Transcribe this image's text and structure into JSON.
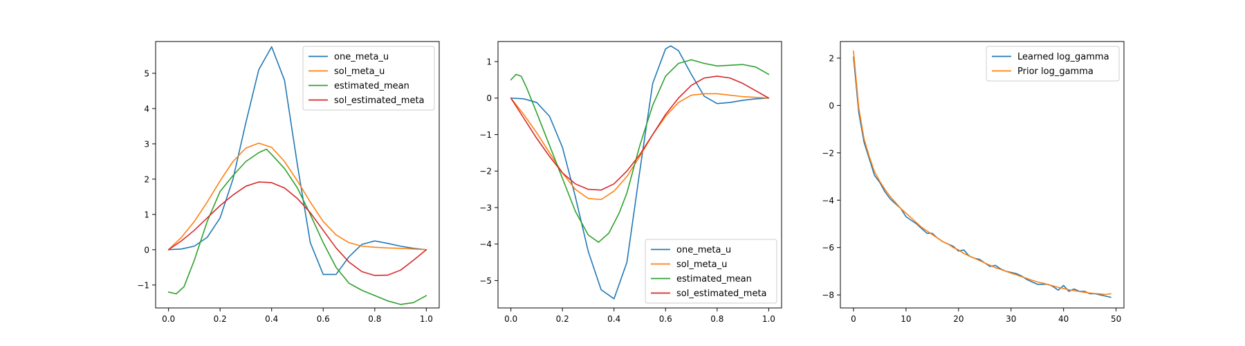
{
  "colors": {
    "C0": "#1f77b4",
    "C1": "#ff7f0e",
    "C2": "#2ca02c",
    "C3": "#d62728"
  },
  "chart_data": [
    {
      "type": "line",
      "xlim": [
        -0.05,
        1.05
      ],
      "ylim": [
        -1.65,
        5.9
      ],
      "xticks": [
        0.0,
        0.2,
        0.4,
        0.6,
        0.8,
        1.0
      ],
      "xtick_labels": [
        "0.0",
        "0.2",
        "0.4",
        "0.6",
        "0.8",
        "1.0"
      ],
      "yticks": [
        -1,
        0,
        1,
        2,
        3,
        4,
        5
      ],
      "ytick_labels": [
        "−1",
        "0",
        "1",
        "2",
        "3",
        "4",
        "5"
      ],
      "grid": false,
      "legend": "upper right",
      "series": [
        {
          "name": "one_meta_u",
          "color": "#1f77b4",
          "x": [
            0.0,
            0.05,
            0.1,
            0.15,
            0.2,
            0.25,
            0.3,
            0.35,
            0.4,
            0.45,
            0.5,
            0.55,
            0.6,
            0.65,
            0.7,
            0.75,
            0.8,
            0.85,
            0.9,
            0.95,
            1.0
          ],
          "y": [
            0.0,
            0.02,
            0.1,
            0.35,
            0.9,
            2.0,
            3.6,
            5.1,
            5.75,
            4.8,
            2.4,
            0.2,
            -0.7,
            -0.7,
            -0.2,
            0.15,
            0.25,
            0.18,
            0.1,
            0.04,
            0.0
          ]
        },
        {
          "name": "sol_meta_u",
          "color": "#ff7f0e",
          "x": [
            0.0,
            0.05,
            0.1,
            0.15,
            0.2,
            0.25,
            0.3,
            0.35,
            0.4,
            0.45,
            0.5,
            0.55,
            0.6,
            0.65,
            0.7,
            0.75,
            0.8,
            0.85,
            0.9,
            0.95,
            1.0
          ],
          "y": [
            0.0,
            0.35,
            0.8,
            1.35,
            1.95,
            2.5,
            2.88,
            3.02,
            2.9,
            2.5,
            1.95,
            1.35,
            0.8,
            0.42,
            0.2,
            0.1,
            0.07,
            0.05,
            0.04,
            0.02,
            0.0
          ]
        },
        {
          "name": "estimated_mean",
          "color": "#2ca02c",
          "x": [
            0.0,
            0.03,
            0.06,
            0.1,
            0.15,
            0.2,
            0.25,
            0.3,
            0.35,
            0.38,
            0.4,
            0.45,
            0.5,
            0.55,
            0.6,
            0.65,
            0.7,
            0.75,
            0.8,
            0.85,
            0.9,
            0.95,
            1.0
          ],
          "y": [
            -1.2,
            -1.25,
            -1.05,
            -0.3,
            0.8,
            1.65,
            2.1,
            2.5,
            2.75,
            2.85,
            2.7,
            2.3,
            1.75,
            1.0,
            0.2,
            -0.5,
            -0.95,
            -1.15,
            -1.3,
            -1.45,
            -1.55,
            -1.5,
            -1.3
          ]
        },
        {
          "name": "sol_estimated_meta",
          "color": "#d62728",
          "x": [
            0.0,
            0.05,
            0.1,
            0.15,
            0.2,
            0.25,
            0.3,
            0.35,
            0.4,
            0.45,
            0.5,
            0.55,
            0.6,
            0.65,
            0.7,
            0.75,
            0.8,
            0.85,
            0.9,
            0.95,
            1.0
          ],
          "y": [
            0.0,
            0.25,
            0.55,
            0.9,
            1.25,
            1.55,
            1.8,
            1.92,
            1.9,
            1.75,
            1.45,
            1.05,
            0.55,
            0.05,
            -0.35,
            -0.62,
            -0.73,
            -0.72,
            -0.58,
            -0.3,
            0.0
          ]
        }
      ]
    },
    {
      "type": "line",
      "xlim": [
        -0.05,
        1.05
      ],
      "ylim": [
        -5.75,
        1.55
      ],
      "xticks": [
        0.0,
        0.2,
        0.4,
        0.6,
        0.8,
        1.0
      ],
      "xtick_labels": [
        "0.0",
        "0.2",
        "0.4",
        "0.6",
        "0.8",
        "1.0"
      ],
      "yticks": [
        -5,
        -4,
        -3,
        -2,
        -1,
        0,
        1
      ],
      "ytick_labels": [
        "−5",
        "−4",
        "−3",
        "−2",
        "−1",
        "0",
        "1"
      ],
      "grid": false,
      "legend": "lower right",
      "series": [
        {
          "name": "one_meta_u",
          "color": "#1f77b4",
          "x": [
            0.0,
            0.05,
            0.1,
            0.15,
            0.2,
            0.25,
            0.3,
            0.35,
            0.4,
            0.45,
            0.5,
            0.55,
            0.6,
            0.62,
            0.65,
            0.7,
            0.75,
            0.8,
            0.85,
            0.9,
            0.95,
            1.0
          ],
          "y": [
            0.0,
            -0.02,
            -0.12,
            -0.5,
            -1.35,
            -2.7,
            -4.2,
            -5.25,
            -5.5,
            -4.5,
            -2.0,
            0.4,
            1.35,
            1.43,
            1.3,
            0.65,
            0.05,
            -0.15,
            -0.12,
            -0.06,
            -0.02,
            0.0
          ]
        },
        {
          "name": "sol_meta_u",
          "color": "#ff7f0e",
          "x": [
            0.0,
            0.05,
            0.1,
            0.15,
            0.2,
            0.25,
            0.3,
            0.35,
            0.4,
            0.45,
            0.5,
            0.55,
            0.6,
            0.65,
            0.7,
            0.75,
            0.8,
            0.85,
            0.9,
            0.95,
            1.0
          ],
          "y": [
            0.0,
            -0.45,
            -0.95,
            -1.5,
            -2.05,
            -2.5,
            -2.75,
            -2.78,
            -2.55,
            -2.15,
            -1.6,
            -1.0,
            -0.5,
            -0.12,
            0.08,
            0.12,
            0.12,
            0.08,
            0.04,
            0.02,
            0.0
          ]
        },
        {
          "name": "estimated_mean",
          "color": "#2ca02c",
          "x": [
            0.0,
            0.02,
            0.04,
            0.06,
            0.1,
            0.15,
            0.2,
            0.25,
            0.3,
            0.34,
            0.38,
            0.42,
            0.45,
            0.5,
            0.55,
            0.6,
            0.65,
            0.7,
            0.75,
            0.8,
            0.85,
            0.9,
            0.95,
            1.0
          ],
          "y": [
            0.5,
            0.65,
            0.6,
            0.3,
            -0.4,
            -1.3,
            -2.2,
            -3.1,
            -3.75,
            -3.95,
            -3.7,
            -3.15,
            -2.6,
            -1.3,
            -0.2,
            0.6,
            0.95,
            1.05,
            0.95,
            0.88,
            0.9,
            0.92,
            0.85,
            0.65
          ]
        },
        {
          "name": "sol_estimated_meta",
          "color": "#d62728",
          "x": [
            0.0,
            0.05,
            0.1,
            0.15,
            0.2,
            0.25,
            0.3,
            0.35,
            0.4,
            0.45,
            0.5,
            0.55,
            0.6,
            0.65,
            0.7,
            0.75,
            0.8,
            0.85,
            0.9,
            0.95,
            1.0
          ],
          "y": [
            0.0,
            -0.55,
            -1.1,
            -1.6,
            -2.05,
            -2.35,
            -2.5,
            -2.52,
            -2.35,
            -2.0,
            -1.55,
            -1.0,
            -0.45,
            0.0,
            0.35,
            0.55,
            0.6,
            0.55,
            0.4,
            0.2,
            0.0
          ]
        }
      ]
    },
    {
      "type": "line",
      "xlim": [
        -2.5,
        51.5
      ],
      "ylim": [
        -8.55,
        2.7
      ],
      "xticks": [
        0,
        10,
        20,
        30,
        40,
        50
      ],
      "xtick_labels": [
        "0",
        "10",
        "20",
        "30",
        "40",
        "50"
      ],
      "yticks": [
        -8,
        -6,
        -4,
        -2,
        0,
        2
      ],
      "ytick_labels": [
        "−8",
        "−6",
        "−4",
        "−2",
        "0",
        "2"
      ],
      "grid": false,
      "legend": "upper right",
      "series": [
        {
          "name": "Learned log_gamma",
          "color": "#1f77b4",
          "x": [
            0,
            1,
            2,
            3,
            4,
            5,
            6,
            7,
            8,
            9,
            10,
            11,
            12,
            13,
            14,
            15,
            16,
            17,
            18,
            19,
            20,
            21,
            22,
            23,
            24,
            25,
            26,
            27,
            28,
            29,
            30,
            31,
            32,
            33,
            34,
            35,
            36,
            37,
            38,
            39,
            40,
            41,
            42,
            43,
            44,
            45,
            46,
            47,
            48,
            49
          ],
          "y": [
            2.05,
            -0.3,
            -1.55,
            -2.25,
            -2.95,
            -3.25,
            -3.65,
            -3.95,
            -4.15,
            -4.35,
            -4.7,
            -4.85,
            -5.0,
            -5.2,
            -5.4,
            -5.4,
            -5.6,
            -5.75,
            -5.85,
            -5.95,
            -6.15,
            -6.1,
            -6.35,
            -6.45,
            -6.5,
            -6.65,
            -6.8,
            -6.75,
            -6.9,
            -7.0,
            -7.05,
            -7.1,
            -7.2,
            -7.35,
            -7.45,
            -7.55,
            -7.55,
            -7.55,
            -7.65,
            -7.8,
            -7.6,
            -7.85,
            -7.75,
            -7.85,
            -7.85,
            -7.95,
            -7.95,
            -8.0,
            -8.05,
            -8.1
          ]
        },
        {
          "name": "Prior log_gamma",
          "color": "#ff7f0e",
          "x": [
            0,
            1,
            2,
            3,
            4,
            5,
            6,
            7,
            8,
            9,
            10,
            11,
            12,
            13,
            14,
            15,
            16,
            17,
            18,
            19,
            20,
            21,
            22,
            23,
            24,
            25,
            26,
            27,
            28,
            29,
            30,
            31,
            32,
            33,
            34,
            35,
            36,
            37,
            38,
            39,
            40,
            41,
            42,
            43,
            44,
            45,
            46,
            47,
            48,
            49
          ],
          "y": [
            2.3,
            -0.1,
            -1.4,
            -2.15,
            -2.8,
            -3.2,
            -3.55,
            -3.85,
            -4.1,
            -4.35,
            -4.55,
            -4.75,
            -4.95,
            -5.15,
            -5.3,
            -5.45,
            -5.6,
            -5.75,
            -5.85,
            -6.0,
            -6.1,
            -6.25,
            -6.35,
            -6.45,
            -6.55,
            -6.65,
            -6.75,
            -6.85,
            -6.92,
            -7.0,
            -7.08,
            -7.15,
            -7.23,
            -7.3,
            -7.38,
            -7.45,
            -7.5,
            -7.56,
            -7.62,
            -7.68,
            -7.73,
            -7.78,
            -7.82,
            -7.86,
            -7.89,
            -7.92,
            -7.94,
            -7.96,
            -7.98,
            -7.95
          ]
        }
      ]
    }
  ]
}
